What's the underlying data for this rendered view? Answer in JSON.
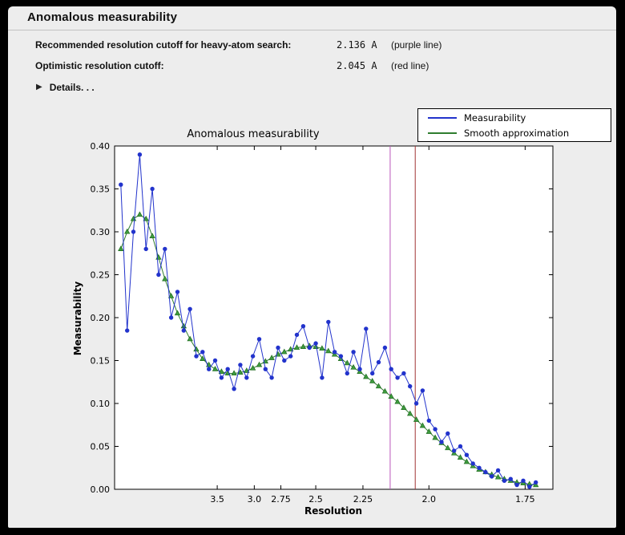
{
  "colors": {
    "window_bg": "#000000",
    "panel_bg": "#ededed"
  },
  "header": {
    "title": "Anomalous measurability"
  },
  "info": {
    "rows": [
      {
        "label": "Recommended resolution cutoff for heavy-atom search:",
        "value": "2.136 A",
        "note": "(purple line)"
      },
      {
        "label": "Optimistic resolution cutoff:",
        "value": "2.045 A",
        "note": "(red line)"
      }
    ]
  },
  "details": {
    "icon": "disclosure-triangle",
    "label": "Details. . ."
  },
  "chart_data": {
    "type": "line",
    "title": "Anomalous measurability",
    "xlabel": "Resolution",
    "ylabel": "Measurability",
    "x_scale": "inverse-d-squared (resolution in Angstrom, decreasing left to right)",
    "ylim": [
      0.0,
      0.4
    ],
    "x_range_s": [
      0.0,
      0.3486
    ],
    "grid": false,
    "legend_position": "top-right",
    "y_ticks": [
      "0.00",
      "0.05",
      "0.10",
      "0.15",
      "0.20",
      "0.25",
      "0.30",
      "0.35",
      "0.40"
    ],
    "x_ticks": [
      {
        "d": 3.5,
        "label": "3.5"
      },
      {
        "d": 3.0,
        "label": "3.0"
      },
      {
        "d": 2.75,
        "label": "2.75"
      },
      {
        "d": 2.5,
        "label": "2.5"
      },
      {
        "d": 2.25,
        "label": "2.25"
      },
      {
        "d": 2.0,
        "label": "2.0"
      },
      {
        "d": 1.75,
        "label": "1.75"
      }
    ],
    "vlines": [
      {
        "name": "purple-cutoff-line",
        "d": 2.136,
        "color": "#bb55bb"
      },
      {
        "name": "red-cutoff-line",
        "d": 2.045,
        "color": "#a03434"
      }
    ],
    "s": [
      0.005,
      0.01,
      0.015,
      0.02,
      0.025,
      0.03,
      0.035,
      0.04,
      0.045,
      0.05,
      0.055,
      0.06,
      0.065,
      0.07,
      0.075,
      0.08,
      0.085,
      0.09,
      0.095,
      0.1,
      0.105,
      0.11,
      0.115,
      0.12,
      0.125,
      0.13,
      0.135,
      0.14,
      0.145,
      0.15,
      0.155,
      0.16,
      0.165,
      0.17,
      0.175,
      0.18,
      0.185,
      0.19,
      0.195,
      0.2,
      0.205,
      0.21,
      0.215,
      0.22,
      0.225,
      0.23,
      0.235,
      0.24,
      0.245,
      0.25,
      0.255,
      0.26,
      0.265,
      0.27,
      0.275,
      0.28,
      0.285,
      0.29,
      0.295,
      0.3,
      0.305,
      0.31,
      0.315,
      0.32,
      0.325,
      0.33,
      0.335
    ],
    "series": [
      {
        "name": "Measurability",
        "color": "#2233cc",
        "marker": "circle",
        "values": [
          0.355,
          0.185,
          0.3,
          0.39,
          0.28,
          0.35,
          0.25,
          0.28,
          0.2,
          0.23,
          0.185,
          0.21,
          0.155,
          0.16,
          0.14,
          0.15,
          0.13,
          0.14,
          0.117,
          0.145,
          0.13,
          0.155,
          0.175,
          0.14,
          0.13,
          0.165,
          0.15,
          0.155,
          0.18,
          0.19,
          0.165,
          0.17,
          0.13,
          0.195,
          0.16,
          0.155,
          0.135,
          0.16,
          0.14,
          0.187,
          0.135,
          0.148,
          0.165,
          0.14,
          0.13,
          0.135,
          0.12,
          0.1,
          0.115,
          0.08,
          0.07,
          0.055,
          0.065,
          0.045,
          0.05,
          0.04,
          0.03,
          0.025,
          0.02,
          0.015,
          0.022,
          0.01,
          0.012,
          0.005,
          0.01,
          0.003,
          0.008
        ]
      },
      {
        "name": "Smooth approximation",
        "color": "#2f7d2f",
        "marker": "triangle",
        "marker_fill": "#3f9c3f",
        "marker_edge": "#1f6b1f",
        "values": [
          0.28,
          0.3,
          0.315,
          0.32,
          0.315,
          0.295,
          0.27,
          0.245,
          0.225,
          0.205,
          0.19,
          0.175,
          0.163,
          0.152,
          0.145,
          0.14,
          0.137,
          0.135,
          0.135,
          0.136,
          0.138,
          0.141,
          0.145,
          0.149,
          0.153,
          0.157,
          0.16,
          0.163,
          0.165,
          0.166,
          0.167,
          0.166,
          0.164,
          0.161,
          0.157,
          0.152,
          0.147,
          0.142,
          0.137,
          0.131,
          0.126,
          0.12,
          0.114,
          0.108,
          0.102,
          0.095,
          0.088,
          0.081,
          0.074,
          0.067,
          0.06,
          0.054,
          0.048,
          0.042,
          0.037,
          0.032,
          0.027,
          0.023,
          0.02,
          0.017,
          0.014,
          0.012,
          0.01,
          0.008,
          0.007,
          0.006,
          0.005
        ]
      }
    ]
  }
}
